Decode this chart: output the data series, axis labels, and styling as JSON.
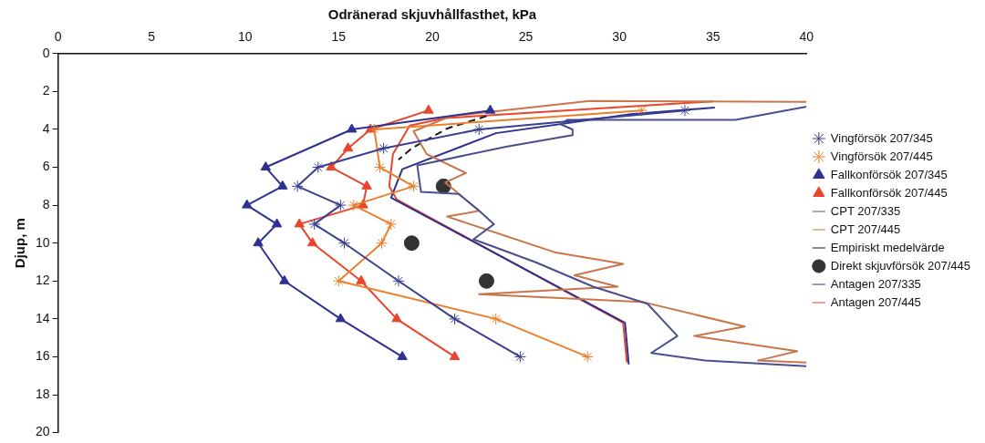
{
  "chart_data": {
    "type": "line",
    "xlabel": "Odränerad skjuvhållfasthet, kPa",
    "ylabel": "Djup, m",
    "xlim": [
      0,
      40
    ],
    "xticks": [
      0,
      5,
      10,
      15,
      20,
      25,
      30,
      35,
      40
    ],
    "ylim": [
      20,
      0
    ],
    "yticks": [
      0,
      2,
      4,
      6,
      8,
      10,
      12,
      14,
      16,
      18,
      20
    ],
    "grid": false,
    "legend": "right",
    "series": [
      {
        "name": "Fallkonförsök 207/345",
        "color": "#2e3192",
        "marker": "triangle",
        "x": [
          23.1,
          15.7,
          11.1,
          12.0,
          10.1,
          11.7,
          10.7,
          12.1,
          15.1,
          18.4
        ],
        "values": [
          3,
          4,
          6,
          7,
          8,
          9,
          10,
          12,
          14,
          16
        ]
      },
      {
        "name": "Fallkonförsök 207/445",
        "color": "#e8452c",
        "marker": "triangle",
        "x": [
          19.8,
          16.7,
          15.5,
          14.6,
          16.5,
          16.3,
          12.9,
          13.6,
          16.2,
          18.1,
          21.2
        ],
        "values": [
          3,
          4,
          5,
          6,
          7,
          8,
          9,
          10,
          12,
          14,
          16
        ]
      },
      {
        "name": "Vingförsök 207/345",
        "color": "#3a3f8f",
        "marker": "cross",
        "x": [
          33.5,
          22.5,
          17.4,
          13.9,
          12.8,
          15.1,
          13.7,
          15.3,
          18.2,
          21.2,
          24.7
        ],
        "values": [
          3,
          4,
          5,
          6,
          7,
          8,
          9,
          10,
          12,
          14,
          16
        ]
      },
      {
        "name": "Vingförsök 207/445",
        "color": "#e8802e",
        "marker": "cross",
        "x": [
          31.2,
          16.9,
          17.2,
          19.0,
          15.8,
          17.8,
          17.3,
          15.0,
          23.4,
          28.3
        ],
        "values": [
          3,
          4,
          6,
          7,
          8,
          9,
          10,
          12,
          14,
          16
        ]
      },
      {
        "name": "CPT 207/335",
        "color": "#4a4f8f",
        "marker": "none",
        "x": [
          40,
          36.2,
          27.2,
          26.9,
          27.5,
          27.5,
          24.0,
          19.2,
          19.4,
          21.4,
          22.4,
          23.3,
          22.2,
          25.5,
          28.6,
          31.5,
          33.1,
          31.7,
          34.6,
          40
        ],
        "values": [
          2.8,
          3.5,
          3.5,
          3.75,
          4.0,
          4.3,
          4.9,
          5.9,
          7.3,
          7.4,
          8.2,
          9.0,
          9.8,
          11.0,
          12.3,
          13.2,
          14.9,
          15.8,
          16.2,
          16.5
        ]
      },
      {
        "name": "CPT 207/445",
        "color": "#c8764a",
        "marker": "none",
        "x": [
          40,
          28.4,
          21.0,
          19.0,
          19.7,
          21.8,
          20.7,
          22.5,
          20.8,
          26.6,
          30.2,
          27.6,
          29.9,
          22.5,
          31.2,
          36.7,
          34.0,
          39.5,
          37.4,
          40
        ],
        "values": [
          2.55,
          2.5,
          3.3,
          4.1,
          5.3,
          6.3,
          6.8,
          8.3,
          8.6,
          10.5,
          11.1,
          11.7,
          12.3,
          12.7,
          13.1,
          14.4,
          14.9,
          15.7,
          16.2,
          16.3
        ]
      },
      {
        "name": "Empiriskt medelvärde",
        "color": "#1a1a1a",
        "marker": "none",
        "line_style": "dashed",
        "x": [
          22.9,
          20.8,
          18.9,
          18.2
        ],
        "values": [
          3.3,
          3.95,
          5.0,
          5.6
        ]
      },
      {
        "name": "Direkt skjuvförsök 207/445",
        "type": "scatter",
        "color": "#333333",
        "marker": "circle",
        "x": [
          20.6,
          18.9,
          22.9
        ],
        "values": [
          7,
          10,
          12
        ]
      },
      {
        "name": "Antagen 207/335",
        "color": "#2e3192",
        "marker": "none",
        "x": [
          35.1,
          30.6,
          23.4,
          18.4,
          17.8,
          30.3,
          30.5
        ],
        "values": [
          2.85,
          3.2,
          4.2,
          6.1,
          7.6,
          14.2,
          16.4
        ]
      },
      {
        "name": "Antagen 207/445",
        "color": "#e8452c",
        "marker": "none",
        "x": [
          35.0,
          20.7,
          18.8,
          17.9,
          17.7,
          18.1,
          30.2,
          30.4
        ],
        "values": [
          2.52,
          3.4,
          3.8,
          5.3,
          7.0,
          7.7,
          14.2,
          16.3
        ]
      }
    ]
  }
}
